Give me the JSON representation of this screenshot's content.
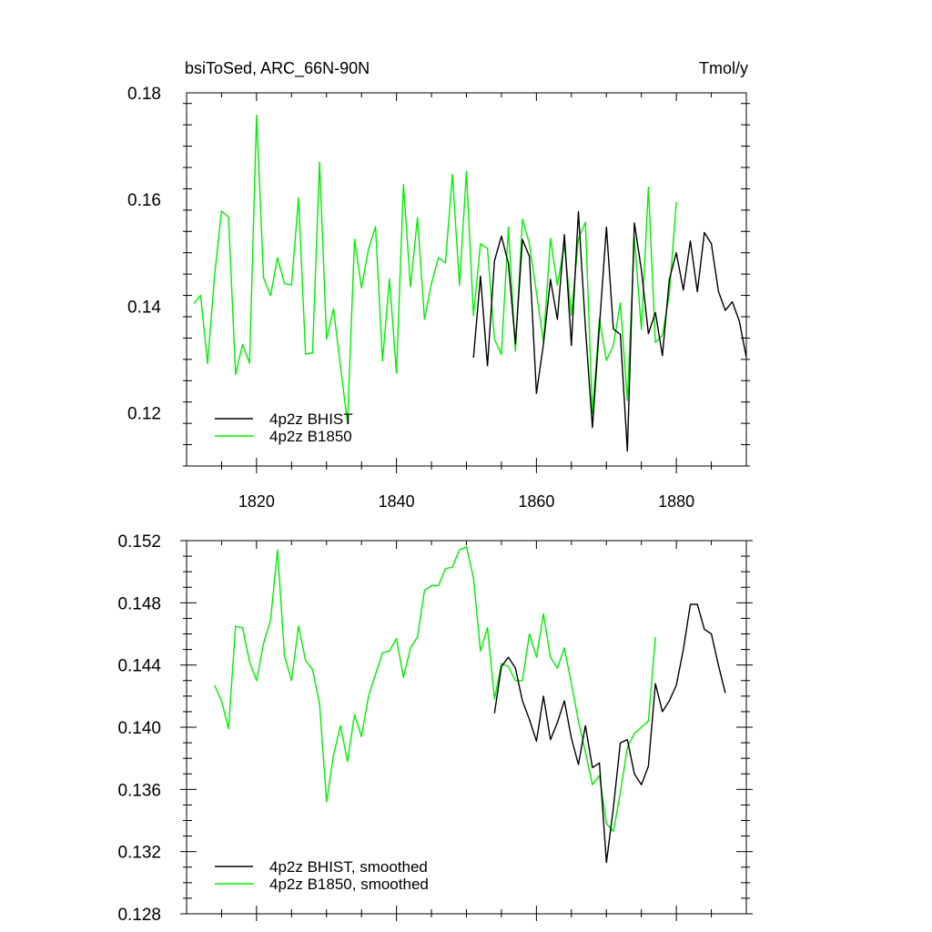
{
  "header": {
    "title": "bsiToSed, ARC_66N-90N",
    "units": "Tmol/y"
  },
  "chart_data": [
    {
      "type": "line",
      "xlim": [
        1810,
        1890
      ],
      "ylim": [
        0.11,
        0.18
      ],
      "x_ticks": [
        1820,
        1840,
        1860,
        1880
      ],
      "x_tick_labels": [
        "1820",
        "1840",
        "1860",
        "1880"
      ],
      "y_ticks": [
        0.12,
        0.14,
        0.16,
        0.18
      ],
      "y_tick_labels": [
        "0.12",
        "0.14",
        "0.16",
        "0.18"
      ],
      "legend_position": "bottom-left",
      "series": [
        {
          "name": "4p2z BHIST",
          "color": "#000000",
          "x_start": 1851,
          "values": [
            0.1303,
            0.1456,
            0.1288,
            0.1485,
            0.1531,
            0.148,
            0.1329,
            0.1525,
            0.1493,
            0.1236,
            0.1329,
            0.145,
            0.1375,
            0.1534,
            0.1326,
            0.1577,
            0.136,
            0.1172,
            0.1362,
            0.1548,
            0.1357,
            0.1347,
            0.1128,
            0.1556,
            0.1468,
            0.1348,
            0.1388,
            0.1307,
            0.145,
            0.15,
            0.143,
            0.1522,
            0.1427,
            0.1538,
            0.1517,
            0.1428,
            0.1392,
            0.1408,
            0.1372,
            0.1304
          ]
        },
        {
          "name": "4p2z B1850",
          "color": "#00ee00",
          "x_start": 1811,
          "values": [
            0.1405,
            0.142,
            0.1292,
            0.1458,
            0.1578,
            0.1567,
            0.1272,
            0.1328,
            0.1293,
            0.1758,
            0.1453,
            0.142,
            0.1491,
            0.1442,
            0.144,
            0.1603,
            0.131,
            0.1312,
            0.167,
            0.1338,
            0.1395,
            0.1287,
            0.118,
            0.1525,
            0.1434,
            0.1507,
            0.1549,
            0.1297,
            0.1451,
            0.1274,
            0.1628,
            0.1436,
            0.1566,
            0.1375,
            0.1443,
            0.1491,
            0.1481,
            0.1647,
            0.1439,
            0.1652,
            0.1382,
            0.1517,
            0.1508,
            0.1338,
            0.1309,
            0.1548,
            0.1315,
            0.1563,
            0.1517,
            0.1425,
            0.1333,
            0.1527,
            0.1439,
            0.1516,
            0.1383,
            0.1526,
            0.1557,
            0.1198,
            0.1377,
            0.1298,
            0.1326,
            0.1406,
            0.1223,
            0.1529,
            0.1356,
            0.1623,
            0.1332,
            0.1345,
            0.1422,
            0.1595
          ]
        }
      ]
    },
    {
      "type": "line",
      "xlim": [
        1810,
        1890
      ],
      "ylim": [
        0.128,
        0.152
      ],
      "y_ticks": [
        0.128,
        0.132,
        0.136,
        0.14,
        0.144,
        0.148,
        0.152
      ],
      "y_tick_labels": [
        "0.128",
        "0.132",
        "0.136",
        "0.140",
        "0.144",
        "0.148",
        "0.152"
      ],
      "legend_position": "bottom-left",
      "series": [
        {
          "name": "4p2z BHIST, smoothed",
          "color": "#000000",
          "x_start": 1854,
          "values": [
            0.1409,
            0.1439,
            0.1445,
            0.1438,
            0.1417,
            0.1405,
            0.1391,
            0.142,
            0.1392,
            0.1403,
            0.1417,
            0.1393,
            0.1376,
            0.1401,
            0.1374,
            0.1377,
            0.1313,
            0.1348,
            0.139,
            0.1392,
            0.137,
            0.1363,
            0.1375,
            0.1428,
            0.141,
            0.1417,
            0.1427,
            0.145,
            0.1479,
            0.1479,
            0.1463,
            0.146,
            0.144,
            0.1422
          ]
        },
        {
          "name": "4p2z B1850, smoothed",
          "color": "#00ee00",
          "x_start": 1814,
          "values": [
            0.1427,
            0.1417,
            0.1399,
            0.1465,
            0.1464,
            0.1442,
            0.143,
            0.1454,
            0.1469,
            0.1514,
            0.1446,
            0.143,
            0.1465,
            0.1443,
            0.1437,
            0.1415,
            0.1352,
            0.1382,
            0.1401,
            0.1378,
            0.1408,
            0.1394,
            0.142,
            0.1434,
            0.1448,
            0.1449,
            0.1457,
            0.1432,
            0.1451,
            0.1458,
            0.1488,
            0.1491,
            0.1491,
            0.1502,
            0.1503,
            0.1514,
            0.1516,
            0.1496,
            0.1449,
            0.1464,
            0.1418,
            0.1441,
            0.1439,
            0.143,
            0.143,
            0.146,
            0.1445,
            0.1473,
            0.1445,
            0.1438,
            0.1451,
            0.1428,
            0.1404,
            0.1384,
            0.1363,
            0.1369,
            0.1338,
            0.1333,
            0.1358,
            0.1387,
            0.1396,
            0.14,
            0.1404,
            0.1458
          ]
        }
      ]
    }
  ]
}
